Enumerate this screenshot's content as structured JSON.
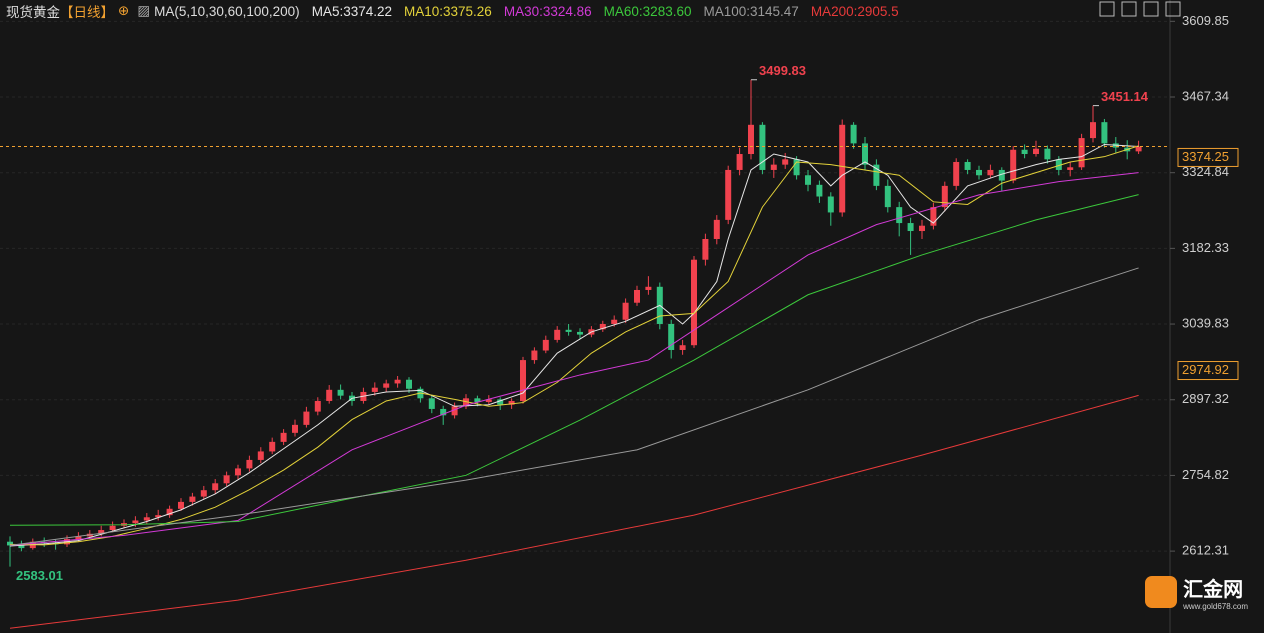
{
  "chart_data": {
    "type": "candlestick",
    "title": "现货黄金",
    "period": "【日线】",
    "ma_label": "MA(5,10,30,60,100,200)",
    "up_color": "#f0424e",
    "down_color": "#33c27f",
    "ylim": [
      2460,
      3650
    ],
    "yticks": [
      3609.85,
      3467.34,
      3324.84,
      3182.33,
      3039.83,
      2897.32,
      2754.82,
      2612.31
    ],
    "grid": true,
    "last_price": 3374.25,
    "price_marker": 2974.92,
    "high_label_indexes": [
      65,
      95
    ],
    "low_label_index": 0,
    "candles": [
      [
        2630,
        2640,
        2583.01,
        2623
      ],
      [
        2623,
        2632,
        2612,
        2618
      ],
      [
        2618,
        2636,
        2615,
        2630
      ],
      [
        2630,
        2638,
        2620,
        2628
      ],
      [
        2628,
        2634,
        2615,
        2625
      ],
      [
        2625,
        2642,
        2620,
        2635
      ],
      [
        2635,
        2648,
        2630,
        2640
      ],
      [
        2640,
        2652,
        2636,
        2645
      ],
      [
        2645,
        2660,
        2640,
        2652
      ],
      [
        2652,
        2668,
        2648,
        2660
      ],
      [
        2660,
        2672,
        2655,
        2665
      ],
      [
        2665,
        2678,
        2658,
        2670
      ],
      [
        2670,
        2684,
        2664,
        2676
      ],
      [
        2676,
        2690,
        2670,
        2680
      ],
      [
        2680,
        2698,
        2675,
        2692
      ],
      [
        2692,
        2712,
        2688,
        2705
      ],
      [
        2705,
        2722,
        2698,
        2715
      ],
      [
        2715,
        2735,
        2710,
        2727
      ],
      [
        2727,
        2748,
        2720,
        2740
      ],
      [
        2740,
        2762,
        2735,
        2755
      ],
      [
        2755,
        2775,
        2748,
        2768
      ],
      [
        2768,
        2792,
        2762,
        2784
      ],
      [
        2784,
        2808,
        2778,
        2800
      ],
      [
        2800,
        2826,
        2795,
        2818
      ],
      [
        2818,
        2842,
        2812,
        2835
      ],
      [
        2835,
        2860,
        2828,
        2850
      ],
      [
        2850,
        2884,
        2845,
        2875
      ],
      [
        2875,
        2902,
        2868,
        2895
      ],
      [
        2895,
        2925,
        2890,
        2916
      ],
      [
        2916,
        2926,
        2898,
        2905
      ],
      [
        2905,
        2912,
        2886,
        2895
      ],
      [
        2895,
        2920,
        2890,
        2912
      ],
      [
        2912,
        2930,
        2905,
        2920
      ],
      [
        2920,
        2935,
        2912,
        2928
      ],
      [
        2928,
        2942,
        2920,
        2935
      ],
      [
        2935,
        2940,
        2910,
        2918
      ],
      [
        2918,
        2922,
        2892,
        2900
      ],
      [
        2900,
        2905,
        2872,
        2880
      ],
      [
        2880,
        2886,
        2850,
        2868
      ],
      [
        2868,
        2892,
        2862,
        2885
      ],
      [
        2885,
        2908,
        2880,
        2900
      ],
      [
        2900,
        2905,
        2885,
        2893
      ],
      [
        2893,
        2906,
        2888,
        2898
      ],
      [
        2898,
        2902,
        2878,
        2888
      ],
      [
        2888,
        2900,
        2880,
        2895
      ],
      [
        2895,
        2978,
        2890,
        2972
      ],
      [
        2972,
        2996,
        2965,
        2990
      ],
      [
        2990,
        3018,
        2985,
        3010
      ],
      [
        3010,
        3036,
        3005,
        3029
      ],
      [
        3029,
        3040,
        3018,
        3025
      ],
      [
        3025,
        3032,
        3012,
        3020
      ],
      [
        3020,
        3036,
        3015,
        3030
      ],
      [
        3030,
        3046,
        3025,
        3040
      ],
      [
        3040,
        3056,
        3035,
        3048
      ],
      [
        3048,
        3088,
        3042,
        3080
      ],
      [
        3080,
        3112,
        3074,
        3104
      ],
      [
        3104,
        3130,
        3095,
        3110
      ],
      [
        3110,
        3118,
        3030,
        3040
      ],
      [
        3040,
        3048,
        2975,
        2991
      ],
      [
        2991,
        3010,
        2982,
        3000
      ],
      [
        3000,
        3168,
        2995,
        3161
      ],
      [
        3161,
        3210,
        3150,
        3200
      ],
      [
        3200,
        3245,
        3190,
        3236
      ],
      [
        3236,
        3338,
        3228,
        3330
      ],
      [
        3330,
        3372,
        3320,
        3360
      ],
      [
        3360,
        3499.83,
        3350,
        3415
      ],
      [
        3415,
        3420,
        3322,
        3330
      ],
      [
        3330,
        3352,
        3315,
        3340
      ],
      [
        3340,
        3362,
        3332,
        3350
      ],
      [
        3350,
        3356,
        3312,
        3320
      ],
      [
        3320,
        3330,
        3290,
        3302
      ],
      [
        3302,
        3310,
        3268,
        3280
      ],
      [
        3280,
        3288,
        3225,
        3250
      ],
      [
        3250,
        3425,
        3242,
        3415
      ],
      [
        3415,
        3420,
        3370,
        3380
      ],
      [
        3380,
        3392,
        3330,
        3340
      ],
      [
        3340,
        3350,
        3292,
        3300
      ],
      [
        3300,
        3312,
        3250,
        3260
      ],
      [
        3260,
        3270,
        3205,
        3230
      ],
      [
        3230,
        3240,
        3170,
        3215
      ],
      [
        3215,
        3236,
        3200,
        3225
      ],
      [
        3225,
        3268,
        3218,
        3260
      ],
      [
        3260,
        3308,
        3252,
        3300
      ],
      [
        3300,
        3352,
        3292,
        3345
      ],
      [
        3345,
        3350,
        3322,
        3330
      ],
      [
        3330,
        3338,
        3312,
        3320
      ],
      [
        3320,
        3340,
        3315,
        3330
      ],
      [
        3330,
        3335,
        3290,
        3310
      ],
      [
        3310,
        3375,
        3305,
        3368
      ],
      [
        3368,
        3378,
        3352,
        3360
      ],
      [
        3360,
        3385,
        3355,
        3370
      ],
      [
        3370,
        3376,
        3342,
        3350
      ],
      [
        3350,
        3356,
        3320,
        3330
      ],
      [
        3330,
        3345,
        3318,
        3335
      ],
      [
        3335,
        3398,
        3330,
        3390
      ],
      [
        3390,
        3451.14,
        3382,
        3420
      ],
      [
        3420,
        3426,
        3372,
        3380
      ],
      [
        3380,
        3392,
        3362,
        3372
      ],
      [
        3372,
        3386,
        3350,
        3365
      ],
      [
        3365,
        3385,
        3360,
        3374
      ]
    ],
    "series": [
      {
        "name": "MA5:3374.22",
        "color": "#e6e6e6",
        "x": [
          0,
          3,
          6,
          9,
          12,
          15,
          18,
          21,
          24,
          27,
          30,
          33,
          36,
          39,
          42,
          45,
          48,
          51,
          54,
          57,
          59,
          60,
          62,
          63,
          65,
          67,
          70,
          72,
          73,
          75,
          77,
          79,
          81,
          84,
          87,
          90,
          92,
          94,
          96,
          99
        ],
        "values": [
          2622,
          2626,
          2632,
          2650,
          2668,
          2690,
          2720,
          2760,
          2805,
          2850,
          2900,
          2912,
          2915,
          2885,
          2888,
          2910,
          2985,
          3025,
          3045,
          3075,
          3040,
          3060,
          3120,
          3200,
          3330,
          3360,
          3345,
          3300,
          3320,
          3345,
          3320,
          3260,
          3230,
          3300,
          3322,
          3340,
          3350,
          3355,
          3378,
          3374.22
        ]
      },
      {
        "name": "MA10:3375.26",
        "color": "#e3d23a",
        "x": [
          0,
          3,
          6,
          9,
          12,
          15,
          18,
          21,
          24,
          27,
          30,
          33,
          36,
          39,
          42,
          45,
          48,
          51,
          54,
          57,
          60,
          63,
          66,
          69,
          72,
          75,
          78,
          81,
          84,
          87,
          90,
          93,
          96,
          99
        ],
        "values": [
          2625,
          2624,
          2630,
          2640,
          2655,
          2672,
          2695,
          2728,
          2765,
          2808,
          2860,
          2895,
          2910,
          2898,
          2885,
          2892,
          2930,
          2985,
          3025,
          3055,
          3060,
          3120,
          3260,
          3345,
          3340,
          3330,
          3320,
          3270,
          3265,
          3305,
          3325,
          3345,
          3355,
          3375.26
        ]
      },
      {
        "name": "MA30:3324.86",
        "color": "#d23ad6",
        "x": [
          0,
          10,
          20,
          30,
          40,
          50,
          56,
          62,
          70,
          76,
          85,
          92,
          99
        ],
        "values": [
          2623,
          2642,
          2670,
          2803,
          2887,
          2944,
          2972,
          3057,
          3170,
          3227,
          3283,
          3308,
          3324.86
        ]
      },
      {
        "name": "MA60:3283.60",
        "color": "#3cc83c",
        "x": [
          0,
          10,
          20,
          30,
          40,
          50,
          60,
          70,
          80,
          90,
          99
        ],
        "values": [
          2661,
          2662,
          2668,
          2712,
          2755,
          2859,
          2972,
          3095,
          3170,
          3236,
          3283.6
        ]
      },
      {
        "name": "MA100:3145.47",
        "color": "#9a9a9a",
        "x": [
          0,
          20,
          40,
          55,
          70,
          85,
          99
        ],
        "values": [
          2623,
          2680,
          2746,
          2803,
          2916,
          3048,
          3145.47
        ]
      },
      {
        "name": "MA200:2905.5",
        "color": "#e63a3a",
        "x": [
          0,
          20,
          40,
          60,
          80,
          99
        ],
        "values": [
          2467,
          2520,
          2595,
          2680,
          2793,
          2905.5
        ]
      }
    ]
  },
  "watermark": {
    "name": "汇金网",
    "url": "www.gold678.com"
  }
}
